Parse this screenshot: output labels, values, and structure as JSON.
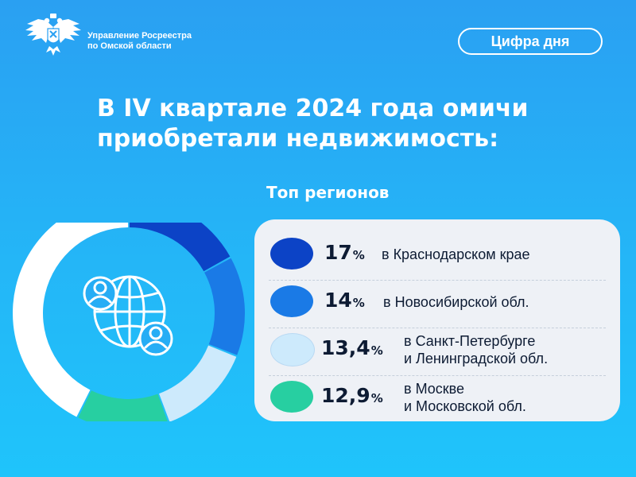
{
  "header": {
    "org_line1": "Управление Росреестра",
    "org_line2": "по Омской области",
    "badge": "Цифра дня"
  },
  "headline": {
    "line1": "В IV квартале 2024 года омичи",
    "line2": "приобретали недвижимость:"
  },
  "colors": {
    "background": "#26adf5",
    "card": "#eef1f6",
    "donut_rest": "#ffffff"
  },
  "icons": {
    "center": "globe-people-icon",
    "emblem": "double-headed-eagle-icon"
  },
  "chart_data": {
    "type": "pie",
    "title": "Топ регионов",
    "unit": "%",
    "slices": [
      {
        "value": 17,
        "display": "17",
        "label_line1": "в Краснодарском крае",
        "label_line2": "",
        "color": "#0c43c6"
      },
      {
        "value": 14,
        "display": "14",
        "label_line1": "в Новосибирской обл.",
        "label_line2": "",
        "color": "#1a7ae6"
      },
      {
        "value": 13.4,
        "display": "13,4",
        "label_line1": "в Санкт-Петербурге",
        "label_line2": "и Ленинградской обл.",
        "color": "#cdeafc"
      },
      {
        "value": 12.9,
        "display": "12,9",
        "label_line1": "в Москве",
        "label_line2": "и Московской обл.",
        "color": "#27cfa1"
      }
    ]
  }
}
